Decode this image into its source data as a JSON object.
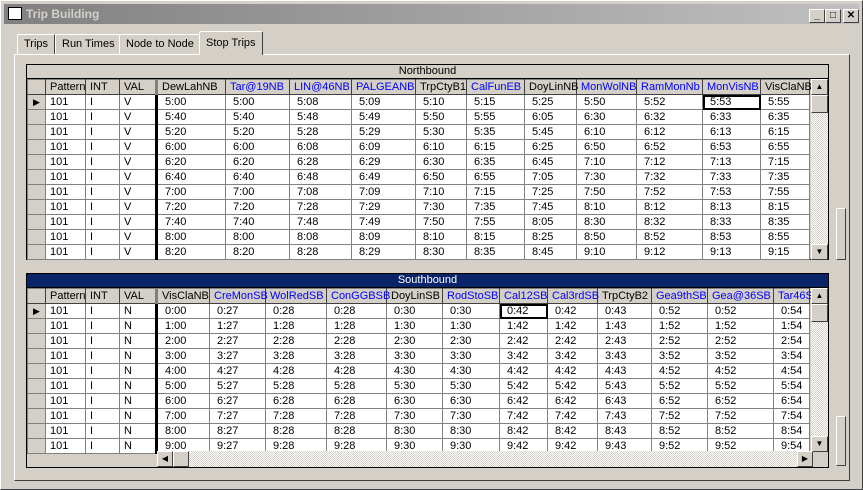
{
  "window": {
    "title": "Trip Building",
    "controls": [
      "_",
      "□",
      "✕"
    ]
  },
  "tabs": [
    {
      "label": "Trips"
    },
    {
      "label": "Run Times"
    },
    {
      "label": "Node to Node"
    },
    {
      "label": "Stop Trips",
      "active": true
    }
  ],
  "colors": {
    "link_header": "#0000ff",
    "southbound_title_bg": "#0a246a"
  },
  "northbound": {
    "title": "Northbound",
    "columns": [
      {
        "label": "Pattern"
      },
      {
        "label": "INT"
      },
      {
        "label": "VAL"
      },
      {
        "label": "DewLahNB"
      },
      {
        "label": "Tar@19NB",
        "blue": true
      },
      {
        "label": "LIN@46NB",
        "blue": true
      },
      {
        "label": "PALGEANB",
        "blue": true
      },
      {
        "label": "TrpCtyB1"
      },
      {
        "label": "CalFunEB",
        "blue": true
      },
      {
        "label": "DoyLinNB"
      },
      {
        "label": "MonWolNB",
        "blue": true
      },
      {
        "label": "RamMonNb",
        "blue": true
      },
      {
        "label": "MonVisNB",
        "blue": true
      },
      {
        "label": "VisClaNB"
      }
    ],
    "selected_cell": {
      "row": 0,
      "column": "MonVisNB"
    },
    "rows": [
      [
        "101",
        "I",
        "V",
        "5:00",
        "5:00",
        "5:08",
        "5:09",
        "5:10",
        "5:15",
        "5:25",
        "5:50",
        "5:52",
        "5:53",
        "5:55"
      ],
      [
        "101",
        "I",
        "V",
        "5:40",
        "5:40",
        "5:48",
        "5:49",
        "5:50",
        "5:55",
        "6:05",
        "6:30",
        "6:32",
        "6:33",
        "6:35"
      ],
      [
        "101",
        "I",
        "V",
        "5:20",
        "5:20",
        "5:28",
        "5:29",
        "5:30",
        "5:35",
        "5:45",
        "6:10",
        "6:12",
        "6:13",
        "6:15"
      ],
      [
        "101",
        "I",
        "V",
        "6:00",
        "6:00",
        "6:08",
        "6:09",
        "6:10",
        "6:15",
        "6:25",
        "6:50",
        "6:52",
        "6:53",
        "6:55"
      ],
      [
        "101",
        "I",
        "V",
        "6:20",
        "6:20",
        "6:28",
        "6:29",
        "6:30",
        "6:35",
        "6:45",
        "7:10",
        "7:12",
        "7:13",
        "7:15"
      ],
      [
        "101",
        "I",
        "V",
        "6:40",
        "6:40",
        "6:48",
        "6:49",
        "6:50",
        "6:55",
        "7:05",
        "7:30",
        "7:32",
        "7:33",
        "7:35"
      ],
      [
        "101",
        "I",
        "V",
        "7:00",
        "7:00",
        "7:08",
        "7:09",
        "7:10",
        "7:15",
        "7:25",
        "7:50",
        "7:52",
        "7:53",
        "7:55"
      ],
      [
        "101",
        "I",
        "V",
        "7:20",
        "7:20",
        "7:28",
        "7:29",
        "7:30",
        "7:35",
        "7:45",
        "8:10",
        "8:12",
        "8:13",
        "8:15"
      ],
      [
        "101",
        "I",
        "V",
        "7:40",
        "7:40",
        "7:48",
        "7:49",
        "7:50",
        "7:55",
        "8:05",
        "8:30",
        "8:32",
        "8:33",
        "8:35"
      ],
      [
        "101",
        "I",
        "V",
        "8:00",
        "8:00",
        "8:08",
        "8:09",
        "8:10",
        "8:15",
        "8:25",
        "8:50",
        "8:52",
        "8:53",
        "8:55"
      ],
      [
        "101",
        "I",
        "V",
        "8:20",
        "8:20",
        "8:28",
        "8:29",
        "8:30",
        "8:35",
        "8:45",
        "9:10",
        "9:12",
        "9:13",
        "9:15"
      ]
    ]
  },
  "southbound": {
    "title": "Southbound",
    "columns": [
      {
        "label": "Pattern"
      },
      {
        "label": "INT"
      },
      {
        "label": "VAL"
      },
      {
        "label": "VisClaNB"
      },
      {
        "label": "CreMonSB",
        "blue": true
      },
      {
        "label": "WolRedSB",
        "blue": true
      },
      {
        "label": "ConGGBSB",
        "blue": true
      },
      {
        "label": "DoyLinSB"
      },
      {
        "label": "RodStoSB",
        "blue": true
      },
      {
        "label": "Cal12SB",
        "blue": true
      },
      {
        "label": "Cal3rdSB",
        "blue": true
      },
      {
        "label": "TrpCtyB2"
      },
      {
        "label": "Gea9thSB",
        "blue": true
      },
      {
        "label": "Gea@36SB",
        "blue": true
      },
      {
        "label": "Tar46S",
        "blue": true
      }
    ],
    "selected_cell": {
      "row": 0,
      "column": "Cal12SB"
    },
    "rows": [
      [
        "101",
        "I",
        "N",
        "0:00",
        "0:27",
        "0:28",
        "0:28",
        "0:30",
        "0:30",
        "0:42",
        "0:42",
        "0:43",
        "0:52",
        "0:52",
        "0:54"
      ],
      [
        "101",
        "I",
        "N",
        "1:00",
        "1:27",
        "1:28",
        "1:28",
        "1:30",
        "1:30",
        "1:42",
        "1:42",
        "1:43",
        "1:52",
        "1:52",
        "1:54"
      ],
      [
        "101",
        "I",
        "N",
        "2:00",
        "2:27",
        "2:28",
        "2:28",
        "2:30",
        "2:30",
        "2:42",
        "2:42",
        "2:43",
        "2:52",
        "2:52",
        "2:54"
      ],
      [
        "101",
        "I",
        "N",
        "3:00",
        "3:27",
        "3:28",
        "3:28",
        "3:30",
        "3:30",
        "3:42",
        "3:42",
        "3:43",
        "3:52",
        "3:52",
        "3:54"
      ],
      [
        "101",
        "I",
        "N",
        "4:00",
        "4:27",
        "4:28",
        "4:28",
        "4:30",
        "4:30",
        "4:42",
        "4:42",
        "4:43",
        "4:52",
        "4:52",
        "4:54"
      ],
      [
        "101",
        "I",
        "N",
        "5:00",
        "5:27",
        "5:28",
        "5:28",
        "5:30",
        "5:30",
        "5:42",
        "5:42",
        "5:43",
        "5:52",
        "5:52",
        "5:54"
      ],
      [
        "101",
        "I",
        "N",
        "6:00",
        "6:27",
        "6:28",
        "6:28",
        "6:30",
        "6:30",
        "6:42",
        "6:42",
        "6:43",
        "6:52",
        "6:52",
        "6:54"
      ],
      [
        "101",
        "I",
        "N",
        "7:00",
        "7:27",
        "7:28",
        "7:28",
        "7:30",
        "7:30",
        "7:42",
        "7:42",
        "7:43",
        "7:52",
        "7:52",
        "7:54"
      ],
      [
        "101",
        "I",
        "N",
        "8:00",
        "8:27",
        "8:28",
        "8:28",
        "8:30",
        "8:30",
        "8:42",
        "8:42",
        "8:43",
        "8:52",
        "8:52",
        "8:54"
      ],
      [
        "101",
        "I",
        "N",
        "9:00",
        "9:27",
        "9:28",
        "9:28",
        "9:30",
        "9:30",
        "9:42",
        "9:42",
        "9:43",
        "9:52",
        "9:52",
        "9:54"
      ]
    ]
  },
  "icons": {
    "row_pointer": "▶",
    "scroll_up": "▲",
    "scroll_down": "▼",
    "scroll_left": "◀",
    "scroll_right": "▶"
  }
}
